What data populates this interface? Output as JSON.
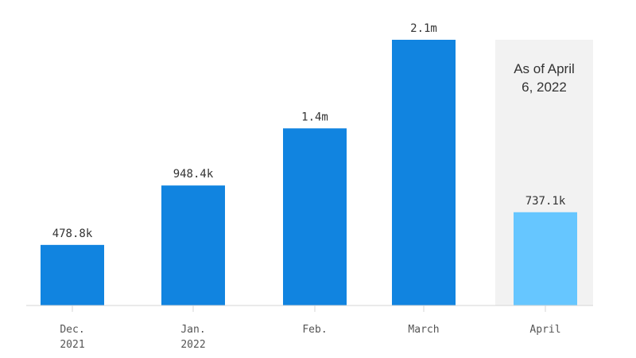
{
  "chart_data": {
    "type": "bar",
    "categories": [
      [
        "Dec.",
        "2021"
      ],
      [
        "Jan.",
        "2022"
      ],
      [
        "Feb."
      ],
      [
        "March"
      ],
      [
        "April"
      ]
    ],
    "values": [
      478800,
      948400,
      1400000,
      2100000,
      737100
    ],
    "value_labels": [
      "478.8k",
      "948.4k",
      "1.4m",
      "2.1m",
      "737.1k"
    ],
    "ylim": [
      0,
      2100000
    ],
    "grid": false,
    "partial_category_index": 4,
    "annotation": [
      "As of April",
      "6, 2022"
    ],
    "colors": {
      "bar": "#1184e0",
      "partial_bar": "#66c6ff",
      "highlight_bg": "#f2f2f2",
      "baseline": "#d6d6d6"
    }
  }
}
